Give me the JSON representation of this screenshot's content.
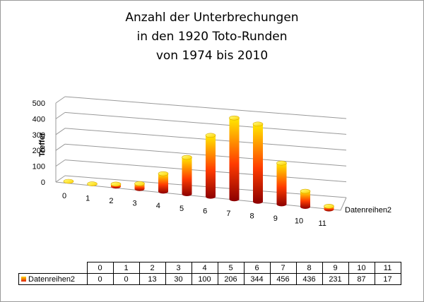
{
  "chart_data": {
    "type": "bar",
    "title": "Anzahl der Unterbrechungen\nin den 1920 Toto-Runden\nvon 1974 bis 2010",
    "ylabel": "Treffer",
    "xlabel": "",
    "ylim": [
      0,
      500
    ],
    "yticks": [
      0,
      100,
      200,
      300,
      400,
      500
    ],
    "categories": [
      "0",
      "1",
      "2",
      "3",
      "4",
      "5",
      "6",
      "7",
      "8",
      "9",
      "10",
      "11"
    ],
    "series": [
      {
        "name": "Datenreihen2",
        "values": [
          0,
          0,
          13,
          30,
          100,
          206,
          344,
          456,
          436,
          231,
          87,
          17
        ]
      }
    ],
    "style": "3d-cylinder",
    "grid": true,
    "legend": "data-table",
    "bar_gradient": [
      "#ffe800",
      "#ff3c00",
      "#8c0000"
    ]
  },
  "table": {
    "series_label": "Datenreihen2"
  }
}
